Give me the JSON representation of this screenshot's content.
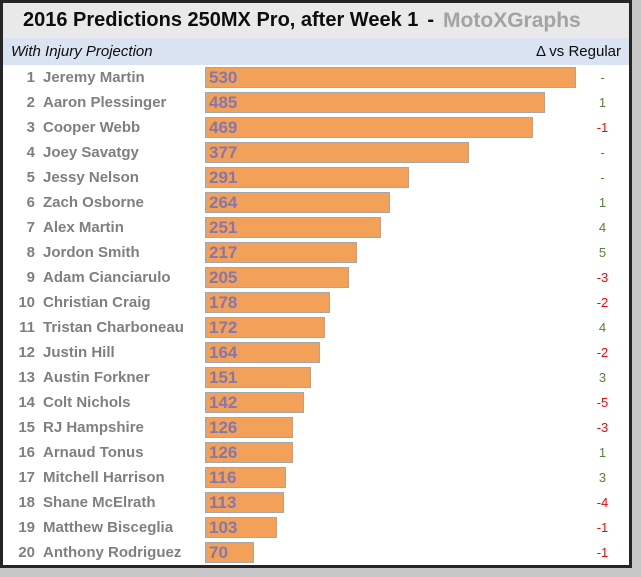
{
  "header": {
    "title": "2016 Predictions 250MX Pro, after Week 1",
    "separator": "-",
    "brand": "MotoXGraphs",
    "subtitle": "With Injury Projection",
    "delta_header": "Δ vs Regular"
  },
  "colors": {
    "bar_fill": "#f3a159",
    "bar_border": "#a6a6a6",
    "bar_value_text": "#8477ad",
    "rider_name_text": "#7f7f7f",
    "delta_positive": "#578332",
    "delta_negative": "#ff0000",
    "title_bar_bg": "#e9e9e9",
    "subtitle_bar_bg": "#dae3f1",
    "frame_border": "#262626"
  },
  "chart_data": {
    "type": "bar",
    "orientation": "horizontal",
    "title": "2016 Predictions 250MX Pro, after Week 1 - MotoXGraphs",
    "subtitle": "With Injury Projection",
    "delta_column_label": "Δ vs Regular",
    "value_axis_max": 530,
    "grid": false,
    "legend": false,
    "categories": [
      "Jeremy Martin",
      "Aaron Plessinger",
      "Cooper Webb",
      "Joey Savatgy",
      "Jessy Nelson",
      "Zach Osborne",
      "Alex Martin",
      "Jordon Smith",
      "Adam Cianciarulo",
      "Christian Craig",
      "Tristan Charboneau",
      "Justin Hill",
      "Austin Forkner",
      "Colt Nichols",
      "RJ Hampshire",
      "Arnaud Tonus",
      "Mitchell Harrison",
      "Shane McElrath",
      "Matthew Bisceglia",
      "Anthony Rodriguez"
    ],
    "values": [
      530,
      485,
      469,
      377,
      291,
      264,
      251,
      217,
      205,
      178,
      172,
      164,
      151,
      142,
      126,
      126,
      116,
      113,
      103,
      70
    ],
    "deltas": [
      "-",
      "1",
      "-1",
      "-",
      "-",
      "1",
      "4",
      "5",
      "-3",
      "-2",
      "4",
      "-2",
      "3",
      "-5",
      "-3",
      "1",
      "3",
      "-4",
      "-1",
      "-1"
    ],
    "riders": [
      {
        "rank": 1,
        "name": "Jeremy Martin",
        "value": 530,
        "delta": "-"
      },
      {
        "rank": 2,
        "name": "Aaron Plessinger",
        "value": 485,
        "delta": "1"
      },
      {
        "rank": 3,
        "name": "Cooper Webb",
        "value": 469,
        "delta": "-1"
      },
      {
        "rank": 4,
        "name": "Joey Savatgy",
        "value": 377,
        "delta": "-"
      },
      {
        "rank": 5,
        "name": "Jessy Nelson",
        "value": 291,
        "delta": "-"
      },
      {
        "rank": 6,
        "name": "Zach Osborne",
        "value": 264,
        "delta": "1"
      },
      {
        "rank": 7,
        "name": "Alex Martin",
        "value": 251,
        "delta": "4"
      },
      {
        "rank": 8,
        "name": "Jordon Smith",
        "value": 217,
        "delta": "5"
      },
      {
        "rank": 9,
        "name": "Adam Cianciarulo",
        "value": 205,
        "delta": "-3"
      },
      {
        "rank": 10,
        "name": "Christian Craig",
        "value": 178,
        "delta": "-2"
      },
      {
        "rank": 11,
        "name": "Tristan Charboneau",
        "value": 172,
        "delta": "4"
      },
      {
        "rank": 12,
        "name": "Justin Hill",
        "value": 164,
        "delta": "-2"
      },
      {
        "rank": 13,
        "name": "Austin Forkner",
        "value": 151,
        "delta": "3"
      },
      {
        "rank": 14,
        "name": "Colt Nichols",
        "value": 142,
        "delta": "-5"
      },
      {
        "rank": 15,
        "name": "RJ Hampshire",
        "value": 126,
        "delta": "-3"
      },
      {
        "rank": 16,
        "name": "Arnaud Tonus",
        "value": 126,
        "delta": "1"
      },
      {
        "rank": 17,
        "name": "Mitchell Harrison",
        "value": 116,
        "delta": "3"
      },
      {
        "rank": 18,
        "name": "Shane McElrath",
        "value": 113,
        "delta": "-4"
      },
      {
        "rank": 19,
        "name": "Matthew Bisceglia",
        "value": 103,
        "delta": "-1"
      },
      {
        "rank": 20,
        "name": "Anthony Rodriguez",
        "value": 70,
        "delta": "-1"
      }
    ]
  }
}
